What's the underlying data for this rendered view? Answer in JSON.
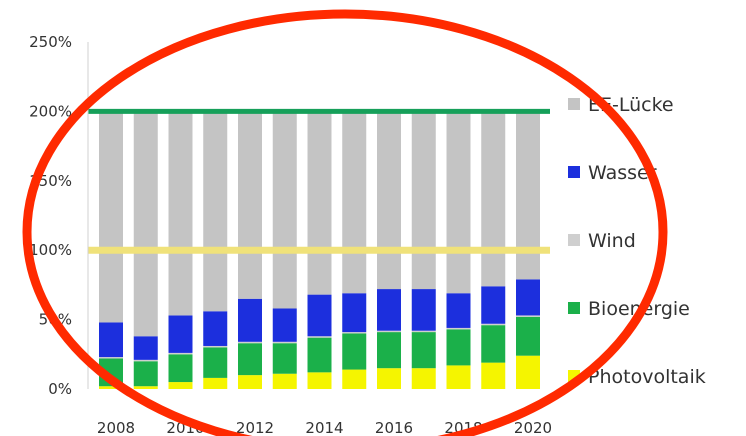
{
  "chart_data": {
    "type": "bar",
    "stacked": true,
    "title": "",
    "xlabel": "",
    "ylabel": "",
    "categories": [
      "2008",
      "2009",
      "2010",
      "2011",
      "2012",
      "2013",
      "2014",
      "2015",
      "2016",
      "2017",
      "2018",
      "2019",
      "2020"
    ],
    "x_tick_labels": [
      "2008",
      "2010",
      "2012",
      "2014",
      "2016",
      "2018",
      "2020"
    ],
    "y_tick_labels": [
      "0%",
      "50%",
      "100%",
      "150%",
      "200%",
      "250%"
    ],
    "ylim": [
      0,
      250
    ],
    "grid": false,
    "legend_position": "right",
    "series": [
      {
        "name": "Photovoltaik",
        "color": "#f5f500",
        "values": [
          2,
          2,
          5,
          8,
          10,
          11,
          12,
          14,
          15,
          15,
          17,
          19,
          24
        ]
      },
      {
        "name": "Bioenergie",
        "color": "#1bb04a",
        "values": [
          20,
          18,
          20,
          22,
          23,
          22,
          25,
          26,
          26,
          26,
          26,
          27,
          28
        ]
      },
      {
        "name": "Wind",
        "color": "#cfcfcf",
        "values": [
          1,
          1,
          1,
          1,
          1,
          1,
          1,
          1,
          1,
          1,
          1,
          1,
          1
        ]
      },
      {
        "name": "Wasser",
        "color": "#1c2fdd",
        "values": [
          25,
          17,
          27,
          25,
          31,
          24,
          30,
          28,
          30,
          30,
          25,
          27,
          26
        ]
      },
      {
        "name": "EE-Lücke",
        "color": "#c4c4c4",
        "values": [
          152,
          162,
          147,
          144,
          135,
          142,
          132,
          131,
          128,
          128,
          131,
          126,
          121
        ]
      }
    ],
    "reference_lines": [
      {
        "value": 200,
        "color": "#16a05a"
      },
      {
        "value": 100,
        "color": "#f0e27a"
      }
    ]
  },
  "annotation": {
    "shape": "ellipse",
    "color": "#ff2a00"
  }
}
